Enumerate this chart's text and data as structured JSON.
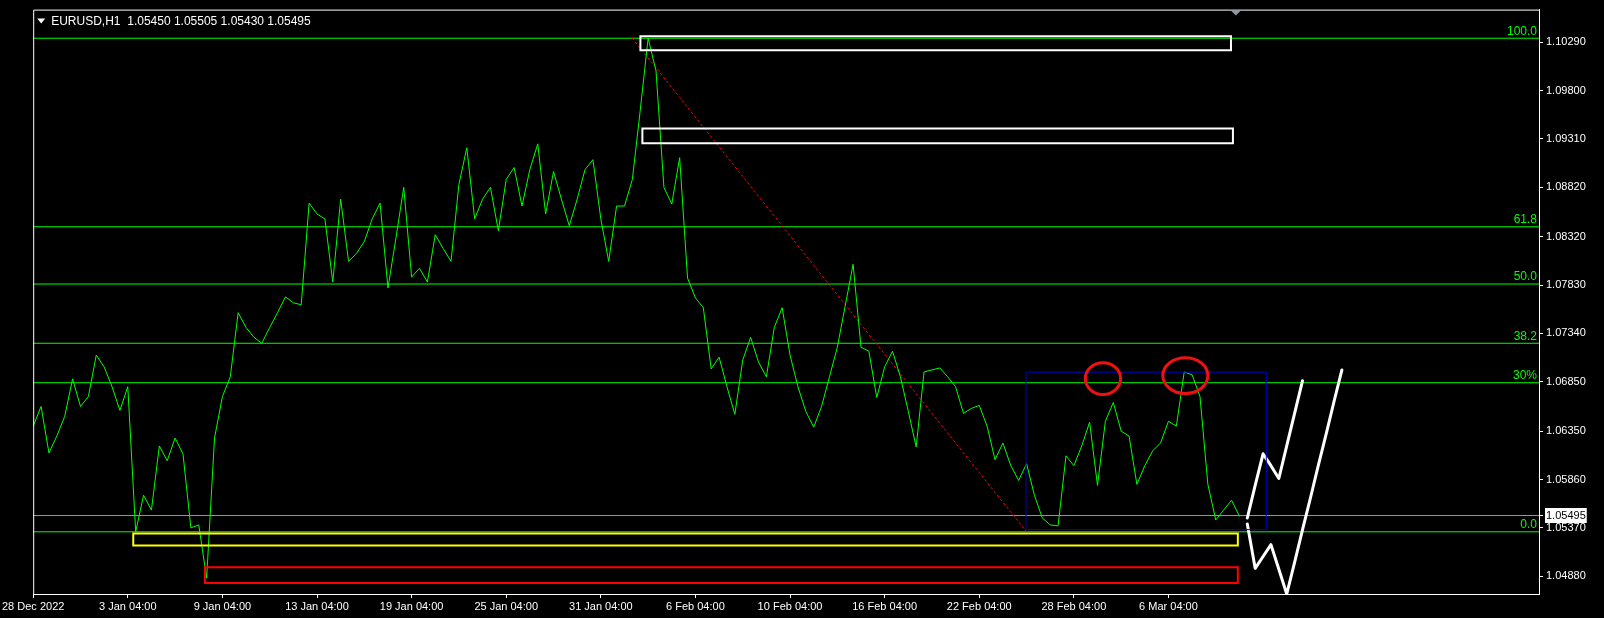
{
  "chart_data": {
    "type": "line",
    "title": "EURUSD,H1  1.05450 1.05505 1.05430 1.05495",
    "categories": [
      "28 Dec 2022",
      null,
      null,
      null,
      null,
      null,
      null,
      null,
      null,
      null,
      null,
      null,
      "3 Jan 04:00",
      null,
      null,
      null,
      null,
      null,
      null,
      null,
      null,
      null,
      null,
      null,
      "9 Jan 04:00",
      null,
      null,
      null,
      null,
      null,
      null,
      null,
      null,
      null,
      null,
      null,
      "13 Jan 04:00",
      null,
      null,
      null,
      null,
      null,
      null,
      null,
      null,
      null,
      null,
      null,
      "19 Jan 04:00",
      null,
      null,
      null,
      null,
      null,
      null,
      null,
      null,
      null,
      null,
      null,
      "25 Jan 04:00",
      null,
      null,
      null,
      null,
      null,
      null,
      null,
      null,
      null,
      null,
      null,
      "31 Jan 04:00",
      null,
      null,
      null,
      null,
      null,
      null,
      null,
      null,
      null,
      null,
      null,
      "6 Feb 04:00",
      null,
      null,
      null,
      null,
      null,
      null,
      null,
      null,
      null,
      null,
      null,
      "10 Feb 04:00",
      null,
      null,
      null,
      null,
      null,
      null,
      null,
      null,
      null,
      null,
      null,
      "16 Feb 04:00",
      null,
      null,
      null,
      null,
      null,
      null,
      null,
      null,
      null,
      null,
      null,
      "22 Feb 04:00",
      null,
      null,
      null,
      null,
      null,
      null,
      null,
      null,
      null,
      null,
      null,
      "28 Feb 04:00",
      null,
      null,
      null,
      null,
      null,
      null,
      null,
      null,
      null,
      null,
      null,
      "6 Mar 04:00",
      null,
      null,
      null,
      null,
      null,
      null,
      null,
      null,
      null,
      null,
      null,
      null,
      null,
      null,
      null,
      null,
      null,
      null,
      null,
      null,
      null,
      null,
      null,
      null,
      null,
      null,
      null,
      null,
      null,
      null,
      null,
      null,
      null,
      null,
      null,
      null,
      null,
      null,
      null,
      null,
      null,
      null,
      null,
      null,
      null,
      null,
      null
    ],
    "series": [
      {
        "color": "#00ff00",
        "values": [
          1.064,
          1.066,
          1.0613,
          1.063,
          1.065,
          1.0688,
          1.066,
          1.067,
          1.0712,
          1.07,
          1.068,
          1.0656,
          1.068,
          1.0533,
          1.057,
          1.0555,
          1.062,
          1.0605,
          1.0628,
          1.0612,
          1.0537,
          1.054,
          1.0486,
          1.0628,
          1.067,
          1.069,
          1.0755,
          1.074,
          1.073,
          1.0724,
          1.074,
          1.0755,
          1.0771,
          1.0765,
          1.0763,
          1.0866,
          1.0855,
          1.085,
          1.0786,
          1.087,
          1.0807,
          1.0815,
          1.0827,
          1.085,
          1.0866,
          1.078,
          1.083,
          1.0882,
          1.0791,
          1.08,
          1.0786,
          1.0834,
          1.082,
          1.0807,
          1.0885,
          1.0922,
          1.085,
          1.087,
          1.0882,
          1.0838,
          1.089,
          1.0902,
          1.0863,
          1.09,
          1.0926,
          1.0855,
          1.0898,
          1.087,
          1.0843,
          1.087,
          1.09,
          1.091,
          1.085,
          1.0807,
          1.0863,
          1.0863,
          1.089,
          1.096,
          1.1033,
          1.1,
          1.0882,
          1.0865,
          1.0912,
          1.079,
          1.077,
          1.076,
          1.0698,
          1.071,
          1.068,
          1.0652,
          1.0707,
          1.073,
          1.0705,
          1.069,
          1.074,
          1.076,
          1.0712,
          1.068,
          1.0655,
          1.0639,
          1.066,
          1.069,
          1.072,
          1.0762,
          1.0804,
          1.072,
          1.0716,
          1.0669,
          1.07,
          1.0716,
          1.069,
          1.0655,
          1.0619,
          1.0695,
          1.0697,
          1.0699,
          1.069,
          1.068,
          1.0653,
          1.0658,
          1.0661,
          1.064,
          1.0606,
          1.0623,
          1.06,
          1.0585,
          1.0602,
          1.057,
          1.0547,
          1.054,
          1.0539,
          1.061,
          1.06,
          1.062,
          1.0644,
          1.058,
          1.0645,
          1.0664,
          1.0635,
          1.063,
          1.0581,
          1.06,
          1.0615,
          1.0623,
          1.0645,
          1.064,
          1.0695,
          1.0692,
          1.067,
          1.0581,
          1.0545,
          1.0555,
          1.0565,
          1.0549,
          null,
          null,
          null,
          null,
          null,
          null,
          null,
          null,
          null,
          null,
          null,
          null,
          null,
          null,
          null,
          null,
          null,
          null,
          null,
          null,
          null,
          null,
          null,
          null,
          null,
          null,
          null,
          null,
          null,
          null,
          null,
          null,
          null,
          null,
          null,
          null,
          null,
          null
        ]
      },
      {
        "color": "#ff0000",
        "line_style": "dotted",
        "values": [
          null,
          null,
          null,
          null,
          null,
          null,
          null,
          null,
          null,
          null,
          null,
          null,
          null,
          null,
          null,
          null,
          null,
          null,
          null,
          null,
          null,
          null,
          null,
          null,
          null,
          null,
          null,
          null,
          null,
          null,
          null,
          null,
          null,
          null,
          null,
          null,
          null,
          null,
          null,
          null,
          null,
          null,
          null,
          null,
          null,
          null,
          null,
          null,
          null,
          null,
          null,
          null,
          null,
          null,
          null,
          null,
          null,
          null,
          null,
          null,
          null,
          null,
          null,
          null,
          null,
          null,
          null,
          null,
          null,
          null,
          null,
          null,
          null,
          null,
          null,
          null,
          1.1033,
          1.1023,
          1.1013,
          1.1003,
          1.0993,
          1.0983,
          1.0973,
          1.0963,
          1.0953,
          1.0943,
          1.0933,
          1.0923,
          1.0913,
          1.0903,
          1.0893,
          1.0883,
          1.0873,
          1.0863,
          1.0853,
          1.0843,
          1.0833,
          1.0823,
          1.0813,
          1.0803,
          1.0793,
          1.0783,
          1.0773,
          1.0763,
          1.0753,
          1.0743,
          1.0733,
          1.0723,
          1.0713,
          1.0703,
          1.0693,
          1.0683,
          1.0673,
          1.0663,
          1.0653,
          1.0643,
          1.0633,
          1.0623,
          1.0613,
          1.0603,
          1.0593,
          1.0583,
          1.0573,
          1.0563,
          1.0553,
          1.0543,
          1.0533,
          null,
          null,
          null,
          null,
          null,
          null,
          null,
          null,
          null,
          null,
          null,
          null,
          null,
          null,
          null,
          null,
          null,
          null,
          null,
          null,
          null,
          null,
          null,
          null,
          null,
          null,
          null,
          null,
          null,
          null,
          null,
          null,
          null,
          null,
          null,
          null,
          null,
          null,
          null,
          null,
          null,
          null,
          null,
          null,
          null,
          null,
          null,
          null,
          null,
          null,
          null,
          null,
          null,
          null,
          null,
          null,
          null,
          null,
          null,
          null,
          null,
          null,
          null,
          null,
          null
        ]
      },
      {
        "color": "#ffffff",
        "values": [
          null,
          null,
          null,
          null,
          null,
          null,
          null,
          null,
          null,
          null,
          null,
          null,
          null,
          null,
          null,
          null,
          null,
          null,
          null,
          null,
          null,
          null,
          null,
          null,
          null,
          null,
          null,
          null,
          null,
          null,
          null,
          null,
          null,
          null,
          null,
          null,
          null,
          null,
          null,
          null,
          null,
          null,
          null,
          null,
          null,
          null,
          null,
          null,
          null,
          null,
          null,
          null,
          null,
          null,
          null,
          null,
          null,
          null,
          null,
          null,
          null,
          null,
          null,
          null,
          null,
          null,
          null,
          null,
          null,
          null,
          null,
          null,
          null,
          null,
          null,
          null,
          null,
          null,
          null,
          null,
          null,
          null,
          null,
          null,
          null,
          null,
          null,
          null,
          null,
          null,
          null,
          null,
          null,
          null,
          null,
          null,
          null,
          null,
          null,
          null,
          null,
          null,
          null,
          null,
          null,
          null,
          null,
          null,
          null,
          null,
          null,
          null,
          null,
          null,
          null,
          null,
          null,
          null,
          null,
          null,
          null,
          null,
          null,
          null,
          null,
          null,
          null,
          null,
          null,
          null,
          null,
          null,
          null,
          null,
          null,
          null,
          null,
          null,
          null,
          null,
          null,
          null,
          null,
          null,
          null,
          null,
          null,
          null,
          null,
          null,
          null,
          null,
          null,
          null,
          1.0547,
          1.058,
          1.0612,
          1.06,
          1.0587,
          1.062,
          1.0653,
          1.0686,
          null,
          null,
          null,
          null,
          null,
          null,
          null,
          null,
          null,
          null,
          null,
          null,
          null,
          null,
          null,
          null,
          null,
          null,
          null,
          null,
          null,
          null,
          null,
          null,
          null,
          null,
          null,
          null,
          null,
          null
        ]
      },
      {
        "color": "#ffffff",
        "values": [
          null,
          null,
          null,
          null,
          null,
          null,
          null,
          null,
          null,
          null,
          null,
          null,
          null,
          null,
          null,
          null,
          null,
          null,
          null,
          null,
          null,
          null,
          null,
          null,
          null,
          null,
          null,
          null,
          null,
          null,
          null,
          null,
          null,
          null,
          null,
          null,
          null,
          null,
          null,
          null,
          null,
          null,
          null,
          null,
          null,
          null,
          null,
          null,
          null,
          null,
          null,
          null,
          null,
          null,
          null,
          null,
          null,
          null,
          null,
          null,
          null,
          null,
          null,
          null,
          null,
          null,
          null,
          null,
          null,
          null,
          null,
          null,
          null,
          null,
          null,
          null,
          null,
          null,
          null,
          null,
          null,
          null,
          null,
          null,
          null,
          null,
          null,
          null,
          null,
          null,
          null,
          null,
          null,
          null,
          null,
          null,
          null,
          null,
          null,
          null,
          null,
          null,
          null,
          null,
          null,
          null,
          null,
          null,
          null,
          null,
          null,
          null,
          null,
          null,
          null,
          null,
          null,
          null,
          null,
          null,
          null,
          null,
          null,
          null,
          null,
          null,
          null,
          null,
          null,
          null,
          null,
          null,
          null,
          null,
          null,
          null,
          null,
          null,
          null,
          null,
          null,
          null,
          null,
          null,
          null,
          null,
          null,
          null,
          null,
          null,
          null,
          null,
          null,
          null,
          1.0541,
          1.0496,
          1.0508,
          1.052,
          1.0495,
          1.047,
          1.0502,
          1.0535,
          1.0567,
          1.06,
          1.0632,
          1.0665,
          1.0697,
          null,
          null,
          null,
          null,
          null,
          null,
          null,
          null,
          null,
          null,
          null,
          null,
          null,
          null,
          null,
          null,
          null,
          null,
          null,
          null,
          null,
          null,
          null,
          null,
          null
        ]
      }
    ],
    "ylim": [
      1.047,
      1.1062
    ],
    "yticks": [
      {
        "value": 1.0488,
        "label": "1.04880"
      },
      {
        "value": 1.0537,
        "label": "1.05370"
      },
      {
        "value": 1.05495,
        "label": "1.05495"
      },
      {
        "value": 1.0586,
        "label": "1.05860"
      },
      {
        "value": 1.0635,
        "label": "1.06350"
      },
      {
        "value": 1.0685,
        "label": "1.06850"
      },
      {
        "value": 1.0734,
        "label": "1.07340"
      },
      {
        "value": 1.0783,
        "label": "1.07830"
      },
      {
        "value": 1.0832,
        "label": "1.08320"
      },
      {
        "value": 1.0882,
        "label": "1.08820"
      },
      {
        "value": 1.0931,
        "label": "1.09310"
      },
      {
        "value": 1.098,
        "label": "1.09800"
      },
      {
        "value": 1.1029,
        "label": "1.10290"
      }
    ],
    "ref_lines": [
      {
        "axis": "y",
        "value": 1.1033,
        "color": "#00ff00"
      },
      {
        "axis": "y",
        "value": 1.0842,
        "color": "#00ff00"
      },
      {
        "axis": "y",
        "value": 1.0784,
        "color": "#00ff00"
      },
      {
        "axis": "y",
        "value": 1.0724,
        "color": "#00ff00"
      },
      {
        "axis": "y",
        "value": 1.0684,
        "color": "#00ff00"
      },
      {
        "axis": "y",
        "value": 1.0533,
        "color": "#00ff00"
      },
      {
        "axis": "y",
        "value": 1.05495,
        "color": "#8c9aa8"
      }
    ],
    "annotations": [
      {
        "text": "100.0",
        "y": 1.1033
      },
      {
        "text": "61.8",
        "y": 1.0842
      },
      {
        "text": "50.0",
        "y": 1.0784
      },
      {
        "text": "38.2",
        "y": 1.0724
      },
      {
        "text": "30%",
        "y": 1.0684
      },
      {
        "text": "0.0",
        "y": 1.0533
      }
    ],
    "grid": false,
    "legend": false,
    "marker": "none",
    "line_style": "solid"
  }
}
